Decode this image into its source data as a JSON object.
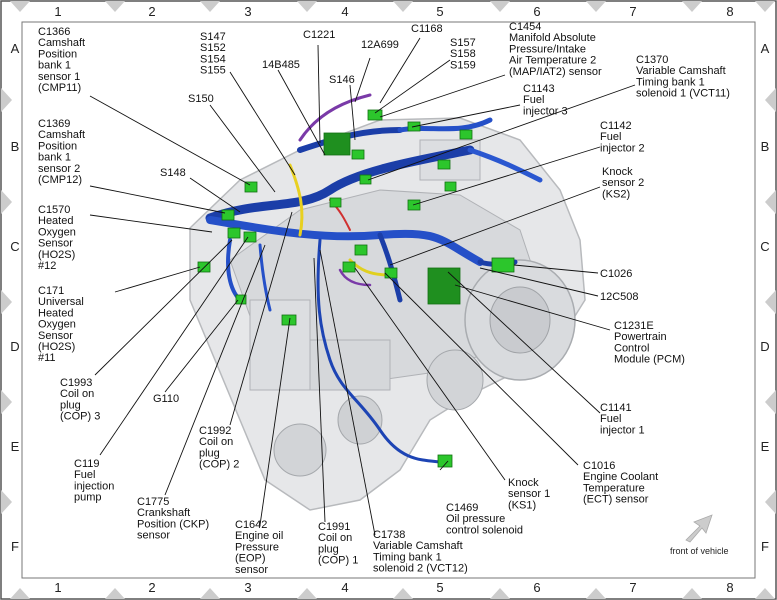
{
  "grid": {
    "columns": [
      "1",
      "2",
      "3",
      "4",
      "5",
      "6",
      "7",
      "8"
    ],
    "rows": [
      "A",
      "B",
      "C",
      "D",
      "E",
      "F"
    ]
  },
  "note": "front of vehicle",
  "labels": [
    {
      "id": "c1366",
      "lines": [
        "C1366",
        "Camshaft",
        "Position",
        "bank 1",
        "sensor 1",
        "(CMP11)"
      ]
    },
    {
      "id": "s147",
      "lines": [
        "S147",
        "S152",
        "S154",
        "S155"
      ]
    },
    {
      "id": "c1221",
      "lines": [
        "C1221"
      ]
    },
    {
      "id": "12a699",
      "lines": [
        "12A699"
      ]
    },
    {
      "id": "c1168",
      "lines": [
        "C1168"
      ]
    },
    {
      "id": "14b485",
      "lines": [
        "14B485"
      ]
    },
    {
      "id": "s157",
      "lines": [
        "S157",
        "S158",
        "S159"
      ]
    },
    {
      "id": "c1454",
      "lines": [
        "C1454",
        "Manifold Absolute",
        "Pressure/Intake",
        "Air Temperature 2",
        "(MAP/IAT2) sensor"
      ]
    },
    {
      "id": "s146",
      "lines": [
        "S146"
      ]
    },
    {
      "id": "c1370",
      "lines": [
        "C1370",
        "Variable Camshaft",
        "Timing bank 1",
        "solenoid 1 (VCT11)"
      ]
    },
    {
      "id": "s150",
      "lines": [
        "S150"
      ]
    },
    {
      "id": "c1143",
      "lines": [
        "C1143",
        "Fuel",
        "injector 3"
      ]
    },
    {
      "id": "c1369",
      "lines": [
        "C1369",
        "Camshaft",
        "Position",
        "bank 1",
        "sensor 2",
        "(CMP12)"
      ]
    },
    {
      "id": "c1142",
      "lines": [
        "C1142",
        "Fuel",
        "injector 2"
      ]
    },
    {
      "id": "s148",
      "lines": [
        "S148"
      ]
    },
    {
      "id": "ks2",
      "lines": [
        "Knock",
        "sensor 2",
        "(KS2)"
      ]
    },
    {
      "id": "c1570",
      "lines": [
        "C1570",
        "Heated",
        "Oxygen",
        "Sensor",
        "(HO2S)",
        "#12"
      ]
    },
    {
      "id": "c1026",
      "lines": [
        "C1026"
      ]
    },
    {
      "id": "12c508",
      "lines": [
        "12C508"
      ]
    },
    {
      "id": "c171",
      "lines": [
        "C171",
        "Universal",
        "Heated",
        "Oxygen",
        "Sensor",
        "(HO2S)",
        "#11"
      ]
    },
    {
      "id": "c1231e",
      "lines": [
        "C1231E",
        "Powertrain",
        "Control",
        "Module (PCM)"
      ]
    },
    {
      "id": "c1993",
      "lines": [
        "C1993",
        "Coil on",
        "plug",
        "(COP) 3"
      ]
    },
    {
      "id": "g110",
      "lines": [
        "G110"
      ]
    },
    {
      "id": "c1992",
      "lines": [
        "C1992",
        "Coil on",
        "plug",
        "(COP) 2"
      ]
    },
    {
      "id": "c1141",
      "lines": [
        "C1141",
        "Fuel",
        "injector 1"
      ]
    },
    {
      "id": "c119",
      "lines": [
        "C119",
        "Fuel",
        "injection",
        "pump"
      ]
    },
    {
      "id": "c1016",
      "lines": [
        "C1016",
        "Engine Coolant",
        "Temperature",
        "(ECT) sensor"
      ]
    },
    {
      "id": "ks1",
      "lines": [
        "Knock",
        "sensor 1",
        "(KS1)"
      ]
    },
    {
      "id": "c1775",
      "lines": [
        "C1775",
        "Crankshaft",
        "Position (CKP)",
        "sensor"
      ]
    },
    {
      "id": "c1469",
      "lines": [
        "C1469",
        "Oil pressure",
        "control solenoid"
      ]
    },
    {
      "id": "c1642",
      "lines": [
        "C1642",
        "Engine oil",
        "Pressure",
        "(EOP)",
        "sensor"
      ]
    },
    {
      "id": "c1991",
      "lines": [
        "C1991",
        "Coil on",
        "plug",
        "(COP) 1"
      ]
    },
    {
      "id": "c1738",
      "lines": [
        "C1738",
        "Variable Camshaft",
        "Timing bank 1",
        "solenoid 2 (VCT12)"
      ]
    }
  ]
}
